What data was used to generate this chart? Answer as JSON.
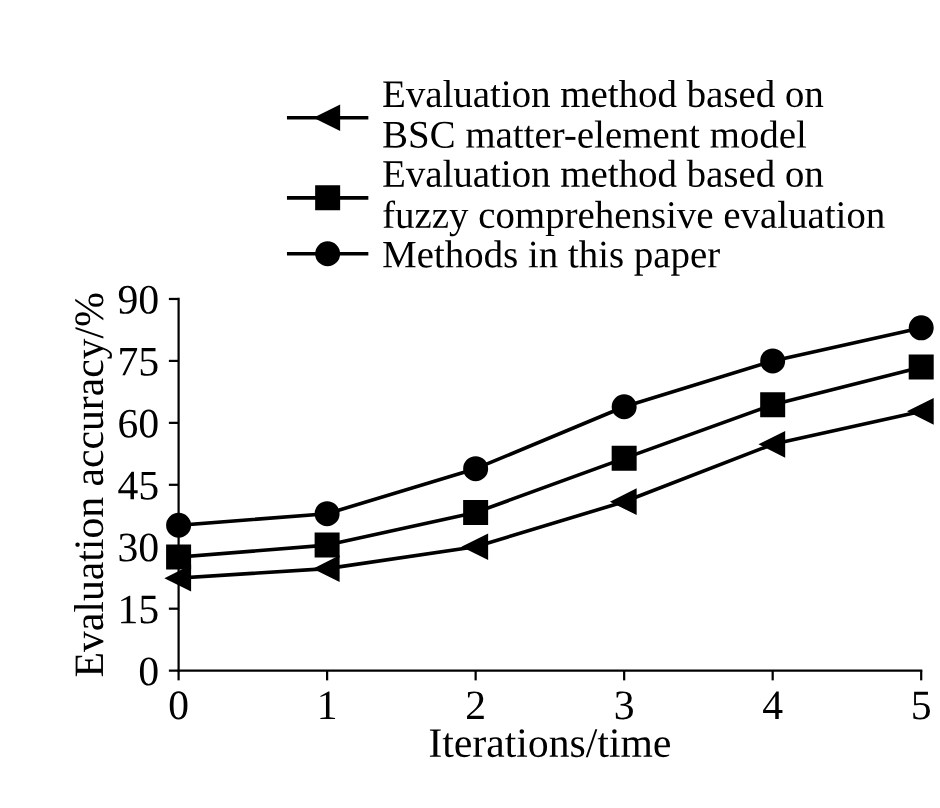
{
  "chart_data": {
    "type": "line",
    "x": [
      0,
      1,
      2,
      3,
      4,
      5
    ],
    "xlabel": "Iterations/time",
    "ylabel": "Evaluation accuracy/%",
    "xlim": [
      0,
      5
    ],
    "xticks": [
      0,
      1,
      2,
      3,
      4,
      5
    ],
    "ylim": [
      0,
      90
    ],
    "yticks": [
      0,
      15,
      30,
      45,
      60,
      75,
      90
    ],
    "grid": false,
    "legend": "top",
    "series": [
      {
        "name": "Evaluation method based on\nBSC matter-element model",
        "color": "#000000",
        "marker": "triangle",
        "values": [
          22.4,
          24.7,
          30,
          40.9,
          54.8,
          62.8
        ]
      },
      {
        "name": "Evaluation method based on\nfuzzy comprehensive evaluation",
        "color": "#000000",
        "marker": "square",
        "values": [
          27.5,
          30.4,
          38.3,
          51.4,
          64.4,
          73.5
        ]
      },
      {
        "name": "Methods in this paper",
        "color": "#000000",
        "marker": "circle",
        "values": [
          35.2,
          38,
          48.9,
          63.9,
          75,
          83
        ]
      }
    ]
  }
}
